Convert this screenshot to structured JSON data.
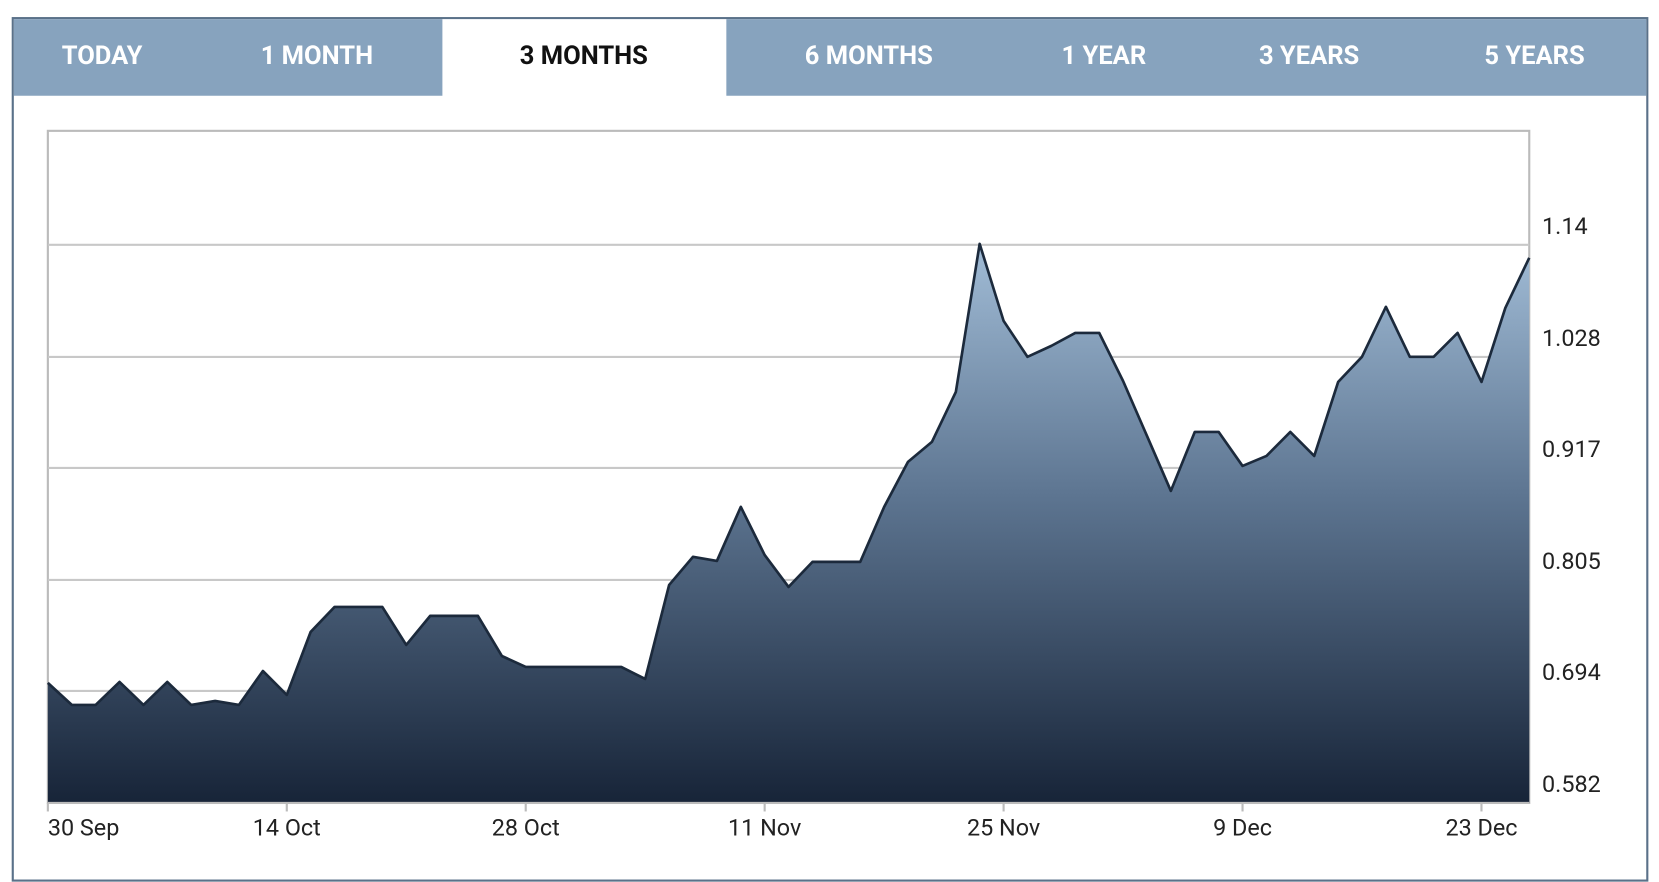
{
  "tabs": [
    "TODAY",
    "1 MONTH",
    "3 MONTHS",
    "6 MONTHS",
    "1 YEAR",
    "3 YEARS",
    "5 YEARS"
  ],
  "selected_tab": 2,
  "chart_data": {
    "type": "area",
    "categories": [
      "30 Sep",
      null,
      null,
      null,
      null,
      null,
      null,
      null,
      null,
      null,
      "14 Oct",
      null,
      null,
      null,
      null,
      null,
      null,
      null,
      null,
      null,
      "28 Oct",
      null,
      null,
      null,
      null,
      null,
      null,
      null,
      null,
      null,
      "11 Nov",
      null,
      null,
      null,
      null,
      null,
      null,
      null,
      null,
      null,
      "25 Nov",
      null,
      null,
      null,
      null,
      null,
      null,
      null,
      null,
      null,
      "9 Dec",
      null,
      null,
      null,
      null,
      null,
      null,
      null,
      null,
      null,
      "23 Dec",
      null,
      null
    ],
    "values": [
      0.702,
      0.68,
      0.68,
      0.703,
      0.68,
      0.703,
      0.68,
      0.684,
      0.68,
      0.714,
      0.69,
      0.753,
      0.778,
      0.778,
      0.778,
      0.74,
      0.769,
      0.769,
      0.769,
      0.729,
      0.718,
      0.718,
      0.718,
      0.718,
      0.718,
      0.706,
      0.8,
      0.828,
      0.824,
      0.878,
      0.83,
      0.798,
      0.823,
      0.823,
      0.823,
      0.878,
      0.923,
      0.943,
      0.993,
      1.141,
      1.064,
      1.028,
      1.039,
      1.052,
      1.052,
      1.004,
      0.949,
      0.894,
      0.953,
      0.953,
      0.919,
      0.929,
      0.953,
      0.929,
      1.003,
      1.028,
      1.078,
      1.028,
      1.028,
      1.052,
      1.003,
      1.077,
      1.127
    ],
    "color": "#1c2a3c",
    "ylim": [
      0.582,
      1.254
    ],
    "yticks": [
      0.582,
      0.694,
      0.805,
      0.917,
      1.028,
      1.14
    ],
    "grid": true
  }
}
